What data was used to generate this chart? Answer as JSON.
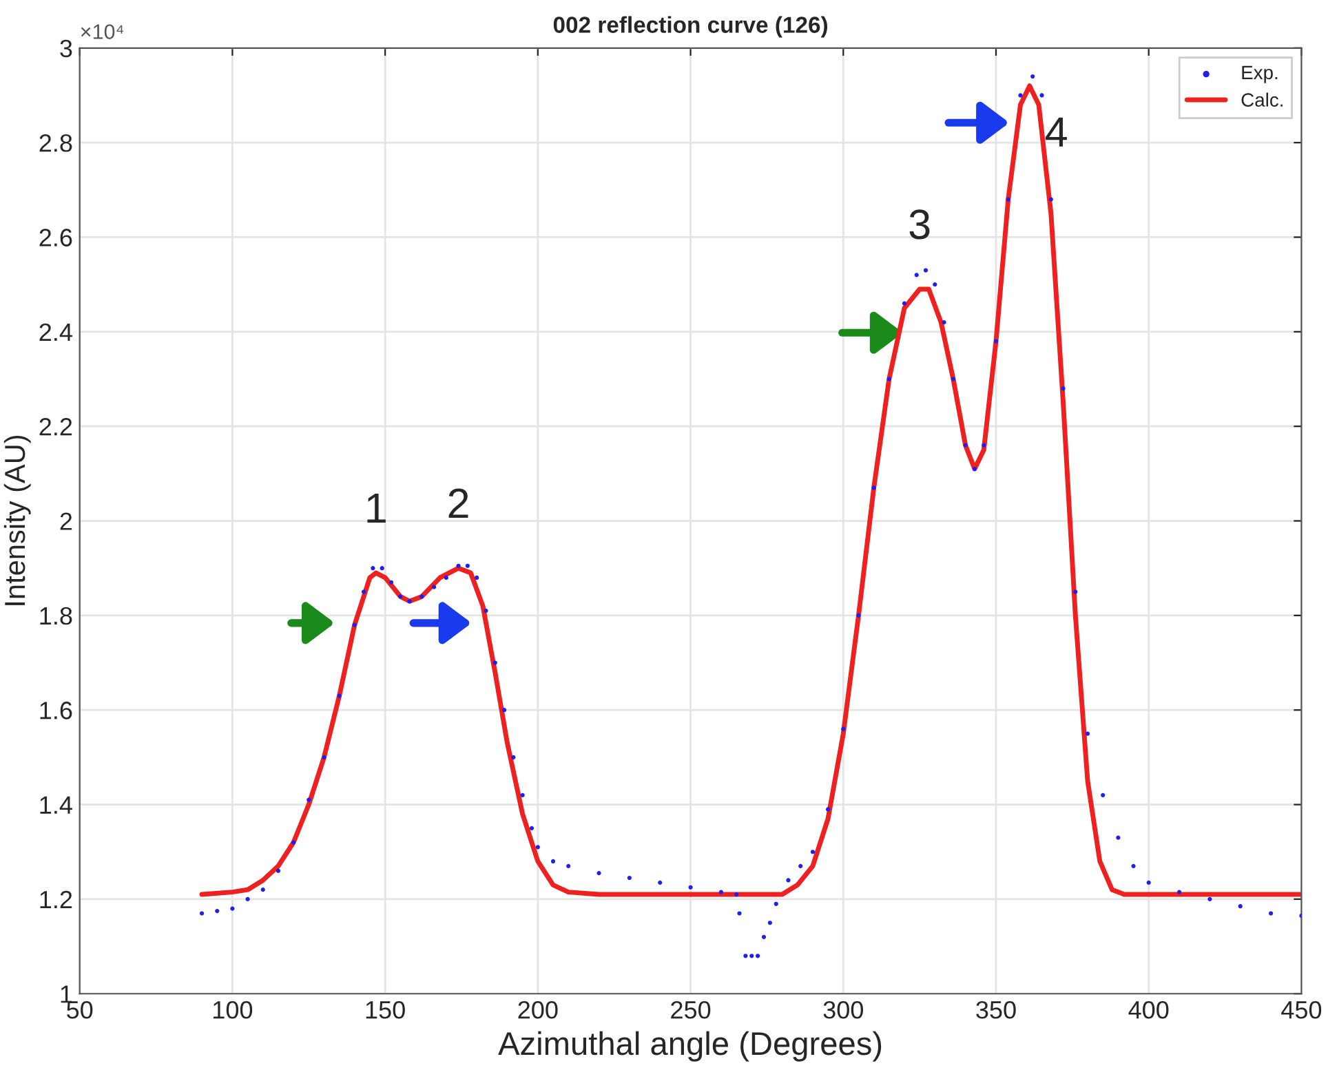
{
  "chart_data": {
    "type": "line",
    "title": "002 reflection curve (126)",
    "xlabel": "Azimuthal angle (Degrees)",
    "ylabel": "Intensity (AU)",
    "xlim": [
      50,
      450
    ],
    "xticks": [
      50,
      100,
      150,
      200,
      250,
      300,
      350,
      400,
      450
    ],
    "ylim": [
      1,
      3
    ],
    "yticks": [
      1,
      1.2,
      1.4,
      1.6,
      1.8,
      2,
      2.2,
      2.4,
      2.6,
      2.8,
      3
    ],
    "grid": true,
    "legend": "top right",
    "annotations": [
      "×10⁴",
      {
        "text": "1",
        "x": 147,
        "y": 1.89
      },
      {
        "text": "2",
        "x": 174,
        "y": 1.9
      },
      {
        "text": "3",
        "x": 325,
        "y": 2.49
      },
      {
        "text": "4",
        "x": 361,
        "y": 2.92
      }
    ],
    "series": [
      {
        "name": "Exp.",
        "type": "scatter",
        "marker": "circle",
        "color": "#2020ee",
        "x": [
          90,
          95,
          100,
          105,
          110,
          115,
          120,
          125,
          130,
          135,
          140,
          143,
          146,
          149,
          152,
          155,
          158,
          162,
          166,
          170,
          174,
          177,
          180,
          183,
          186,
          189,
          192,
          195,
          198,
          200,
          205,
          210,
          220,
          230,
          240,
          250,
          260,
          265,
          266,
          268,
          270,
          272,
          274,
          276,
          278,
          282,
          286,
          290,
          295,
          300,
          305,
          310,
          315,
          320,
          324,
          327,
          330,
          333,
          336,
          340,
          343,
          346,
          350,
          354,
          358,
          362,
          365,
          368,
          372,
          376,
          380,
          385,
          390,
          395,
          400,
          410,
          420,
          430,
          440,
          450
        ],
        "values": [
          1.17,
          1.175,
          1.18,
          1.2,
          1.22,
          1.26,
          1.32,
          1.41,
          1.5,
          1.63,
          1.78,
          1.85,
          1.9,
          1.9,
          1.87,
          1.84,
          1.83,
          1.84,
          1.86,
          1.88,
          1.905,
          1.905,
          1.88,
          1.81,
          1.7,
          1.6,
          1.5,
          1.42,
          1.35,
          1.31,
          1.28,
          1.27,
          1.255,
          1.245,
          1.235,
          1.225,
          1.215,
          1.21,
          1.17,
          1.08,
          1.08,
          1.08,
          1.12,
          1.15,
          1.19,
          1.24,
          1.27,
          1.3,
          1.39,
          1.56,
          1.8,
          2.07,
          2.3,
          2.46,
          2.52,
          2.53,
          2.5,
          2.42,
          2.3,
          2.16,
          2.11,
          2.16,
          2.38,
          2.68,
          2.9,
          2.94,
          2.9,
          2.68,
          2.28,
          1.85,
          1.55,
          1.42,
          1.33,
          1.27,
          1.235,
          1.215,
          1.2,
          1.185,
          1.17,
          1.165
        ]
      },
      {
        "name": "Calc.",
        "marker": "none",
        "color": "#ee2020",
        "x": [
          90,
          100,
          105,
          110,
          115,
          120,
          125,
          130,
          135,
          140,
          145,
          147,
          150,
          155,
          158,
          162,
          168,
          174,
          178,
          182,
          186,
          190,
          195,
          200,
          205,
          210,
          220,
          280,
          285,
          290,
          295,
          300,
          305,
          310,
          315,
          320,
          325,
          328,
          332,
          336,
          340,
          343,
          346,
          350,
          354,
          358,
          361,
          364,
          368,
          372,
          376,
          380,
          384,
          388,
          392,
          450
        ],
        "values": [
          1.21,
          1.215,
          1.22,
          1.24,
          1.27,
          1.32,
          1.4,
          1.5,
          1.63,
          1.78,
          1.88,
          1.89,
          1.88,
          1.84,
          1.83,
          1.84,
          1.88,
          1.9,
          1.89,
          1.82,
          1.68,
          1.53,
          1.38,
          1.28,
          1.23,
          1.215,
          1.21,
          1.21,
          1.23,
          1.27,
          1.37,
          1.55,
          1.8,
          2.07,
          2.3,
          2.45,
          2.49,
          2.49,
          2.42,
          2.3,
          2.16,
          2.11,
          2.15,
          2.38,
          2.68,
          2.88,
          2.92,
          2.88,
          2.65,
          2.25,
          1.8,
          1.45,
          1.28,
          1.22,
          1.21,
          1.21
        ]
      }
    ]
  }
}
